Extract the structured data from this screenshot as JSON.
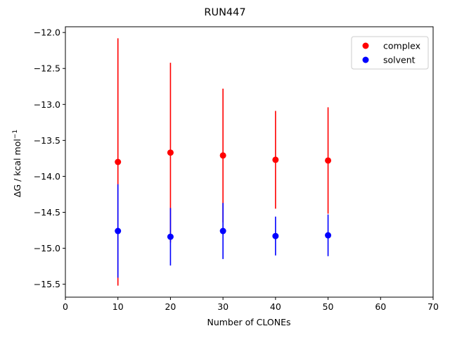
{
  "chart_data": {
    "type": "scatter",
    "title": "RUN447",
    "xlabel": "Number of CLONEs",
    "ylabel_main": "ΔG / kcal mol",
    "ylabel_sup": "−1",
    "xlim": [
      0,
      70
    ],
    "ylim": [
      -15.68,
      -11.92
    ],
    "x_ticks": [
      0,
      10,
      20,
      30,
      40,
      50,
      60,
      70
    ],
    "x_tick_labels": [
      "0",
      "10",
      "20",
      "30",
      "40",
      "50",
      "60",
      "70"
    ],
    "y_ticks": [
      -12.0,
      -12.5,
      -13.0,
      -13.5,
      -14.0,
      -14.5,
      -15.0,
      -15.5
    ],
    "y_tick_labels": [
      "−12.0",
      "−12.5",
      "−13.0",
      "−13.5",
      "−14.0",
      "−14.5",
      "−15.0",
      "−15.5"
    ],
    "grid": false,
    "legend_position": "top-right",
    "series": [
      {
        "name": "complex",
        "color": "#ff0000",
        "x": [
          10,
          20,
          30,
          40,
          50
        ],
        "y": [
          -13.8,
          -13.67,
          -13.71,
          -13.77,
          -13.78
        ],
        "err": [
          1.72,
          1.25,
          0.93,
          0.68,
          0.74
        ]
      },
      {
        "name": "solvent",
        "color": "#0000ff",
        "x": [
          10,
          20,
          30,
          40,
          50
        ],
        "y": [
          -14.76,
          -14.84,
          -14.76,
          -14.83,
          -14.82
        ],
        "err": [
          0.65,
          0.4,
          0.39,
          0.27,
          0.29
        ]
      }
    ]
  }
}
